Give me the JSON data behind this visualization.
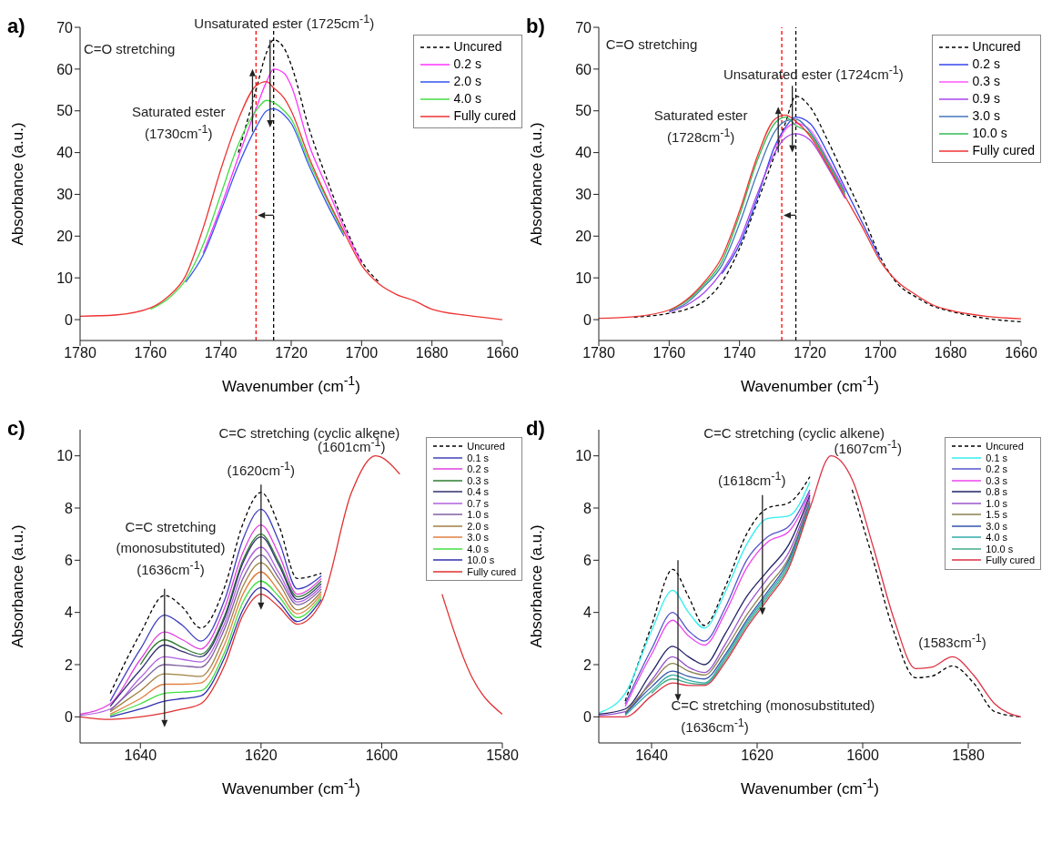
{
  "chart_data": [
    {
      "type": "line",
      "title": "a)",
      "xlabel": "Wavenumber (cm$^{-1}$)",
      "ylabel": "Absorbance (a.u.)",
      "xlim": [
        1780,
        1660
      ],
      "xticks": [
        1780,
        1760,
        1740,
        1720,
        1700,
        1680,
        1660
      ],
      "ylim": [
        -5,
        70
      ],
      "yticks": [
        0,
        10,
        20,
        30,
        40,
        50,
        60,
        70
      ],
      "legend": "top right",
      "x": [
        1780,
        1770,
        1760,
        1755,
        1750,
        1745,
        1740,
        1735,
        1730,
        1727,
        1725,
        1722,
        1720,
        1715,
        1710,
        1705,
        1700,
        1695,
        1690,
        1685,
        1680,
        1670,
        1660
      ],
      "series": [
        {
          "name": "Uncured",
          "color": "#000000",
          "line_style": "dashed",
          "values": [
            null,
            null,
            null,
            null,
            null,
            null,
            null,
            40,
            55,
            64,
            67,
            65,
            61,
            46,
            34,
            23,
            14,
            9,
            null,
            null,
            null,
            null,
            null
          ]
        },
        {
          "name": "0.2 s",
          "color": "#ff33ff",
          "values": [
            null,
            null,
            null,
            null,
            null,
            16,
            27,
            39,
            50.5,
            57,
            60,
            59,
            56,
            42,
            32,
            22,
            13.5,
            null,
            null,
            null,
            null,
            null,
            null
          ]
        },
        {
          "name": "2.0 s",
          "color": "#3355ee",
          "values": [
            null,
            null,
            null,
            null,
            9,
            15.5,
            26,
            37,
            46,
            50,
            50.5,
            49,
            47,
            37,
            28,
            20,
            null,
            null,
            null,
            null,
            null,
            null,
            null
          ]
        },
        {
          "name": "4.0 s",
          "color": "#44dd44",
          "values": [
            null,
            null,
            2.5,
            5,
            9.5,
            18,
            30,
            42,
            50,
            52.5,
            52,
            50,
            48,
            38,
            29,
            20.5,
            null,
            null,
            null,
            null,
            null,
            null,
            null
          ]
        },
        {
          "name": "Fully cured",
          "color": "#ee3333",
          "values": [
            0.8,
            1.1,
            2.8,
            5.5,
            10.5,
            22,
            36,
            48,
            56,
            57,
            55.5,
            53,
            50,
            39,
            29.5,
            21,
            13,
            8.5,
            6,
            4.5,
            2.5,
            1,
            0
          ]
        }
      ],
      "ref_lines": [
        {
          "axis": "x",
          "value": 1730,
          "color": "#ff0000",
          "line_style": "dashed"
        },
        {
          "axis": "x",
          "value": 1725,
          "color": "#000000",
          "line_style": "dashed"
        }
      ],
      "annotations": [
        "C=O stretching",
        {
          "text": "Unsaturated ester (1725cm$^{-1}$)",
          "x": 1725,
          "y": 67
        },
        "Saturated ester",
        "(1730cm$^{-1}$)"
      ]
    },
    {
      "type": "line",
      "title": "b)",
      "xlabel": "Wavenumber (cm$^{-1}$)",
      "ylabel": "Absorbance (a.u.)",
      "xlim": [
        1780,
        1660
      ],
      "xticks": [
        1780,
        1760,
        1740,
        1720,
        1700,
        1680,
        1660
      ],
      "ylim": [
        -5,
        70
      ],
      "yticks": [
        0,
        10,
        20,
        30,
        40,
        50,
        60,
        70
      ],
      "legend": "top right",
      "x": [
        1780,
        1770,
        1760,
        1755,
        1750,
        1745,
        1740,
        1735,
        1730,
        1727,
        1724,
        1720,
        1715,
        1710,
        1705,
        1700,
        1695,
        1690,
        1685,
        1680,
        1670,
        1660
      ],
      "series": [
        {
          "name": "Uncured",
          "color": "#000000",
          "line_style": "dashed",
          "values": [
            null,
            0.6,
            1.5,
            2.5,
            4.5,
            9,
            17,
            28,
            39.5,
            47,
            53.5,
            51,
            43,
            34,
            25,
            15,
            8.5,
            5.5,
            3.2,
            2,
            0.3,
            -0.5
          ]
        },
        {
          "name": "0.2 s",
          "color": "#3344ee",
          "values": [
            null,
            null,
            null,
            null,
            null,
            11,
            18,
            29,
            41.5,
            46,
            48.5,
            47,
            40,
            31.5,
            23,
            14.5,
            null,
            null,
            null,
            null,
            null,
            null
          ]
        },
        {
          "name": "0.3 s",
          "color": "#ff55ff",
          "values": [
            null,
            null,
            null,
            null,
            null,
            null,
            null,
            null,
            41,
            45.5,
            47,
            45.5,
            38.5,
            31,
            null,
            null,
            null,
            null,
            null,
            null,
            null,
            null
          ]
        },
        {
          "name": "0.9 s",
          "color": "#aa44ee",
          "values": [
            null,
            null,
            1.8,
            3.5,
            6.5,
            11.5,
            19,
            30,
            40,
            43.5,
            44.5,
            43,
            36.5,
            29,
            null,
            null,
            null,
            null,
            null,
            null,
            null,
            null
          ]
        },
        {
          "name": "3.0 s",
          "color": "#4477bb",
          "values": [
            null,
            null,
            2,
            4,
            8,
            13,
            23,
            35,
            45,
            47.5,
            48,
            45,
            38,
            30.5,
            null,
            null,
            null,
            null,
            null,
            null,
            null,
            null
          ]
        },
        {
          "name": "10.0 s",
          "color": "#33bb55",
          "values": [
            null,
            null,
            2.2,
            4.5,
            8.5,
            14,
            25,
            38,
            47,
            48.5,
            46.5,
            44.5,
            37.5,
            30,
            null,
            null,
            null,
            null,
            null,
            null,
            null,
            null
          ]
        },
        {
          "name": "Fully cured",
          "color": "#ee3333",
          "values": [
            0.3,
            0.7,
            2.3,
            4.8,
            9,
            15,
            26,
            39,
            48,
            49,
            47.5,
            44,
            37,
            29.5,
            22,
            14,
            9,
            6,
            3.5,
            2.2,
            0.8,
            0.2
          ]
        }
      ],
      "ref_lines": [
        {
          "axis": "x",
          "value": 1728,
          "color": "#ff0000",
          "line_style": "dashed"
        },
        {
          "axis": "x",
          "value": 1724,
          "color": "#000000",
          "line_style": "dashed"
        }
      ],
      "annotations": [
        "C=O stretching",
        {
          "text": "Unsaturated ester (1724cm$^{-1}$)",
          "x": 1724,
          "y": 53.5
        },
        "Saturated ester",
        "(1728cm$^{-1}$)"
      ]
    },
    {
      "type": "line",
      "title": "c)",
      "xlabel": "Wavenumber (cm$^{-1}$)",
      "ylabel": "Absorbance (a.u.)",
      "xlim": [
        1650,
        1580
      ],
      "xticks": [
        1640,
        1620,
        1600,
        1580
      ],
      "ylim": [
        -1,
        11
      ],
      "yticks": [
        0,
        2,
        4,
        6,
        8,
        10
      ],
      "legend": "top right",
      "x": [
        1650,
        1645,
        1640,
        1636,
        1633,
        1630,
        1626,
        1623,
        1620,
        1617,
        1614,
        1610,
        1605,
        1601,
        1597,
        1593,
        1590,
        1585,
        1580
      ],
      "series": [
        {
          "name": "Uncured",
          "color": "#000000",
          "line_style": "dashed",
          "values": [
            null,
            0.9,
            3.2,
            4.65,
            4.2,
            3.4,
            5.0,
            7.4,
            8.6,
            7.3,
            5.3,
            5.5,
            null,
            null,
            null,
            null,
            null,
            null,
            null
          ]
        },
        {
          "name": "0.1 s",
          "color": "#4040c0",
          "values": [
            null,
            0.6,
            2.6,
            3.9,
            3.5,
            2.9,
            4.5,
            6.8,
            7.95,
            6.7,
            4.9,
            5.4,
            null,
            null,
            null,
            null,
            null,
            null,
            null
          ]
        },
        {
          "name": "0.2 s",
          "color": "#e040e0",
          "values": [
            0.1,
            0.5,
            2.2,
            3.25,
            2.95,
            2.6,
            4.2,
            6.3,
            7.35,
            6.2,
            4.7,
            5.3,
            null,
            null,
            null,
            null,
            null,
            null,
            null
          ]
        },
        {
          "name": "0.3 s",
          "color": "#2e7d32",
          "values": [
            null,
            null,
            2.0,
            2.95,
            2.65,
            2.4,
            3.9,
            6.0,
            7.0,
            5.9,
            4.6,
            5.2,
            null,
            null,
            null,
            null,
            null,
            null,
            null
          ]
        },
        {
          "name": "0.4 s",
          "color": "#303070",
          "values": [
            null,
            0.4,
            1.8,
            2.75,
            2.5,
            2.3,
            3.8,
            5.9,
            6.9,
            5.8,
            4.5,
            5.1,
            null,
            null,
            null,
            null,
            null,
            null,
            null
          ]
        },
        {
          "name": "0.7 s",
          "color": "#b060e0",
          "values": [
            0.05,
            0.3,
            1.5,
            2.3,
            2.2,
            2.1,
            3.6,
            5.6,
            6.5,
            5.5,
            4.4,
            5.0,
            null,
            null,
            null,
            null,
            null,
            null,
            null
          ]
        },
        {
          "name": "1.0 s",
          "color": "#8060a0",
          "values": [
            null,
            0.25,
            1.3,
            2.0,
            1.95,
            1.9,
            3.4,
            5.3,
            6.2,
            5.3,
            4.3,
            4.9,
            null,
            null,
            null,
            null,
            null,
            null,
            null
          ]
        },
        {
          "name": "2.0 s",
          "color": "#a08040",
          "values": [
            null,
            0.2,
            1.0,
            1.65,
            1.6,
            1.55,
            3.1,
            5.0,
            5.9,
            5.1,
            4.1,
            4.8,
            null,
            null,
            null,
            null,
            null,
            null,
            null
          ]
        },
        {
          "name": "3.0 s",
          "color": "#e08040",
          "values": [
            null,
            0.1,
            0.7,
            1.25,
            1.25,
            1.3,
            2.8,
            4.7,
            5.55,
            4.8,
            3.95,
            4.7,
            null,
            null,
            null,
            null,
            null,
            null,
            null
          ]
        },
        {
          "name": "4.0 s",
          "color": "#40e040",
          "values": [
            null,
            0.05,
            0.5,
            0.9,
            0.95,
            1.0,
            2.5,
            4.4,
            5.2,
            4.6,
            3.8,
            4.6,
            null,
            null,
            null,
            null,
            null,
            null,
            null
          ]
        },
        {
          "name": "10.0 s",
          "color": "#3030b0",
          "values": [
            null,
            0,
            0.3,
            0.6,
            0.7,
            0.8,
            2.3,
            4.1,
            4.95,
            4.4,
            3.65,
            4.5,
            null,
            null,
            null,
            null,
            null,
            null,
            null
          ]
        },
        {
          "name": "Fully cured",
          "color": "#e03030",
          "values": [
            0,
            -0.1,
            0,
            0.15,
            0.3,
            0.5,
            2.0,
            3.9,
            4.7,
            4.2,
            3.55,
            4.4,
            8.6,
            10,
            9.3,
            null,
            4.7,
            1.5,
            0.1
          ]
        }
      ],
      "annotations": [
        "C=C stretching (cyclic alkene)",
        "(1601cm$^{-1}$)",
        "(1620cm$^{-1}$)",
        "C=C stretching",
        "(monosubstituted)",
        "(1636cm$^{-1}$)"
      ]
    },
    {
      "type": "line",
      "title": "d)",
      "xlabel": "Wavenumber (cm$^{-1}$)",
      "ylabel": "Absorbance (a.u.)",
      "xlim": [
        1650,
        1570
      ],
      "xticks": [
        1640,
        1620,
        1600,
        1580
      ],
      "ylim": [
        -1,
        11
      ],
      "yticks": [
        0,
        2,
        4,
        6,
        8,
        10
      ],
      "legend": "top right",
      "x": [
        1650,
        1645,
        1640,
        1636,
        1633,
        1630,
        1626,
        1622,
        1618,
        1614,
        1610,
        1606,
        1602,
        1598,
        1594,
        1590,
        1587,
        1583,
        1579,
        1575,
        1570
      ],
      "series": [
        {
          "name": "Uncured",
          "color": "#000000",
          "line_style": "dashed",
          "values": [
            null,
            0.6,
            3.5,
            5.65,
            4.6,
            3.5,
            5.0,
            7.0,
            8.0,
            8.2,
            9.2,
            null,
            8.7,
            6.0,
            3.2,
            1.5,
            1.55,
            1.95,
            1.3,
            0.2,
            0
          ]
        },
        {
          "name": "0.1 s",
          "color": "#33eeee",
          "values": [
            0.15,
            0.9,
            3.3,
            4.85,
            4.0,
            3.4,
            4.8,
            6.6,
            7.6,
            7.7,
            9.0,
            null,
            null,
            null,
            null,
            null,
            null,
            null,
            null,
            null,
            null
          ]
        },
        {
          "name": "0.2 s",
          "color": "#5555cc",
          "values": [
            null,
            0.5,
            2.6,
            4.0,
            3.3,
            2.9,
            4.2,
            6.0,
            6.9,
            7.3,
            8.7,
            null,
            null,
            null,
            null,
            null,
            null,
            null,
            null,
            null,
            null
          ]
        },
        {
          "name": "0.3 s",
          "color": "#ee44ee",
          "values": [
            null,
            0.4,
            2.4,
            3.7,
            3.1,
            2.75,
            4.0,
            5.7,
            6.7,
            7.1,
            8.6,
            null,
            null,
            null,
            null,
            null,
            null,
            null,
            null,
            null,
            null
          ]
        },
        {
          "name": "0.8 s",
          "color": "#222266",
          "values": [
            0.1,
            0.3,
            1.7,
            2.7,
            2.3,
            2.0,
            3.2,
            4.6,
            5.6,
            6.6,
            8.5,
            null,
            null,
            null,
            null,
            null,
            null,
            null,
            null,
            null,
            null
          ]
        },
        {
          "name": "1.0 s",
          "color": "#9955cc",
          "values": [
            0.05,
            0.2,
            1.4,
            2.3,
            1.9,
            1.7,
            2.8,
            4.2,
            5.3,
            6.3,
            8.4,
            null,
            null,
            null,
            null,
            null,
            null,
            null,
            null,
            null,
            null
          ]
        },
        {
          "name": "1.5 s",
          "color": "#8a8050",
          "values": [
            null,
            0.15,
            1.3,
            2.05,
            1.75,
            1.6,
            2.6,
            3.9,
            5.0,
            6.1,
            8.3,
            null,
            null,
            null,
            null,
            null,
            null,
            null,
            null,
            null,
            null
          ]
        },
        {
          "name": "3.0 s",
          "color": "#3355aa",
          "values": [
            null,
            0.1,
            1.15,
            1.75,
            1.55,
            1.45,
            2.4,
            3.7,
            4.8,
            6.0,
            8.2,
            null,
            null,
            null,
            null,
            null,
            null,
            null,
            null,
            null,
            null
          ]
        },
        {
          "name": "4.0 s",
          "color": "#33aaaa",
          "values": [
            null,
            0.05,
            1.0,
            1.6,
            1.4,
            1.3,
            2.3,
            3.6,
            4.7,
            5.9,
            8.15,
            null,
            null,
            null,
            null,
            null,
            null,
            null,
            null,
            null,
            null
          ]
        },
        {
          "name": "10.0 s",
          "color": "#44aa88",
          "values": [
            null,
            null,
            0.9,
            1.45,
            1.3,
            1.25,
            2.2,
            3.5,
            4.6,
            5.8,
            8.1,
            null,
            null,
            null,
            null,
            null,
            null,
            null,
            null,
            null,
            null
          ]
        },
        {
          "name": "Fully cured",
          "color": "#dd3344",
          "values": [
            0,
            0,
            0.8,
            1.3,
            1.2,
            1.2,
            2.1,
            3.4,
            4.5,
            5.7,
            8.0,
            10,
            9.1,
            6.5,
            3.7,
            1.85,
            1.9,
            2.3,
            1.6,
            0.5,
            0
          ]
        }
      ],
      "annotations": [
        "C=C stretching (cyclic alkene)",
        "(1607cm$^{-1}$)",
        {
          "text": "(1618cm$^{-1}$)",
          "x": 1618,
          "y": 8.0
        },
        "(1583cm$^{-1}$)",
        "C=C stretching (monosubstituted)",
        "(1636cm$^{-1}$)"
      ]
    }
  ]
}
